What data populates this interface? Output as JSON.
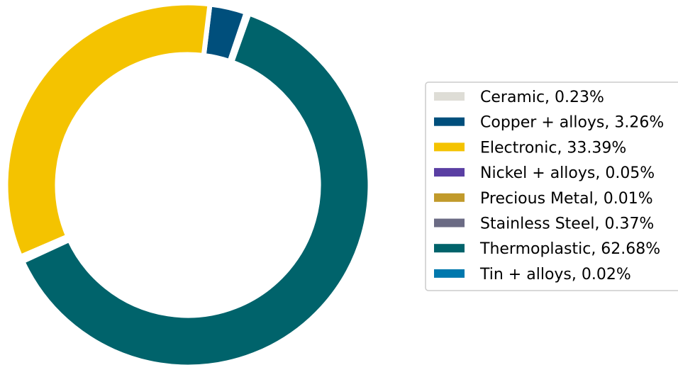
{
  "chart_data": {
    "type": "pie",
    "variant": "donut",
    "title": "",
    "legend_placement": "right",
    "slices": [
      {
        "label": "Ceramic",
        "value": 0.23,
        "legend": "Ceramic, 0.23%",
        "color": "#deddd6"
      },
      {
        "label": "Copper + alloys",
        "value": 3.26,
        "legend": "Copper + alloys, 3.26%",
        "color": "#004f7c"
      },
      {
        "label": "Electronic",
        "value": 33.39,
        "legend": "Electronic, 33.39%",
        "color": "#f4c300"
      },
      {
        "label": "Nickel + alloys",
        "value": 0.05,
        "legend": "Nickel + alloys, 0.05%",
        "color": "#5a3fa3"
      },
      {
        "label": "Precious Metal",
        "value": 0.01,
        "legend": "Precious Metal, 0.01%",
        "color": "#c19a2b"
      },
      {
        "label": "Stainless Steel",
        "value": 0.37,
        "legend": "Stainless Steel, 0.37%",
        "color": "#6b6b84"
      },
      {
        "label": "Thermoplastic",
        "value": 62.68,
        "legend": "Thermoplastic, 62.68%",
        "color": "#00636b"
      },
      {
        "label": "Tin + alloys",
        "value": 0.02,
        "legend": "Tin + alloys, 0.02%",
        "color": "#0078ad"
      }
    ]
  }
}
